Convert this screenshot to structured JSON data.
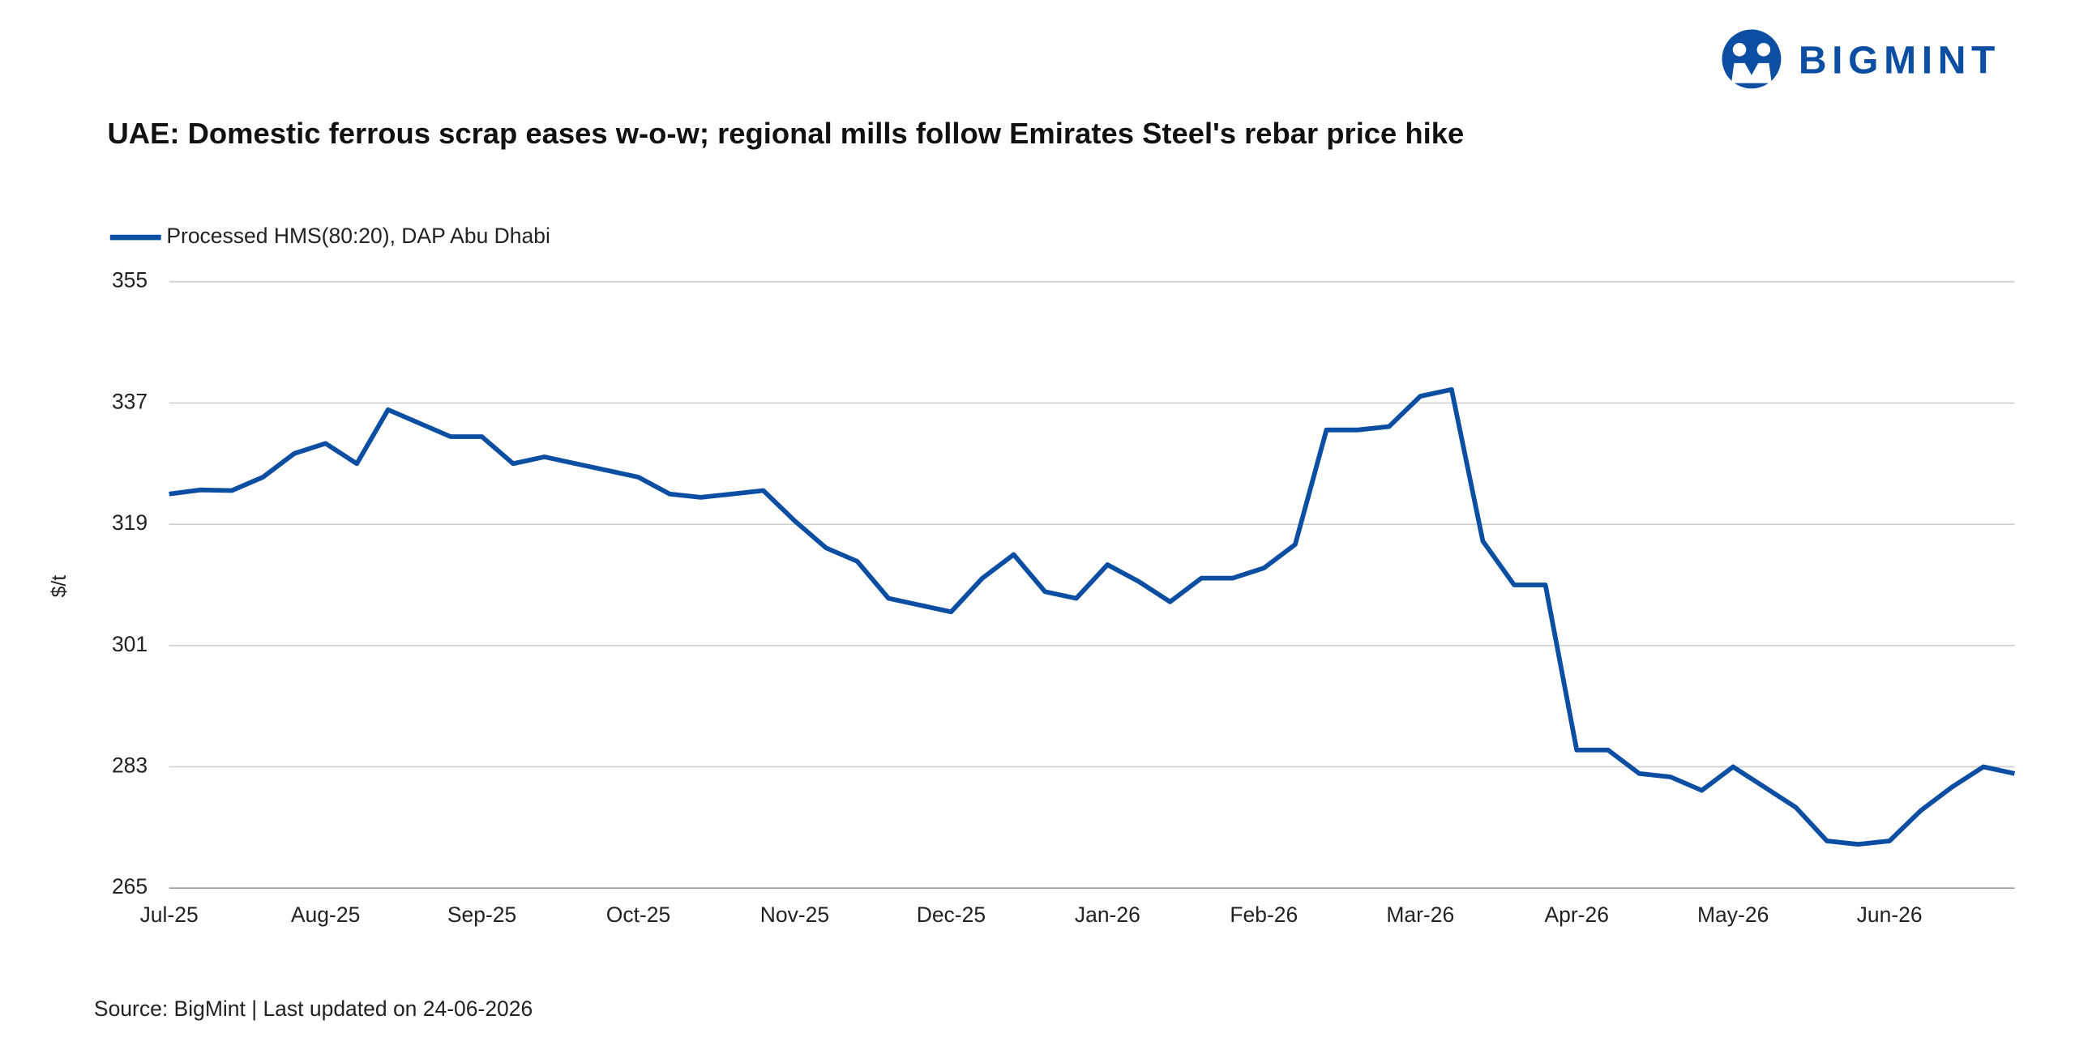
{
  "brand": "BIGMINT",
  "source": "Source: BigMint | Last updated on 24-06-2026",
  "chart_data": {
    "type": "line",
    "title": "UAE: Domestic ferrous scrap eases w-o-w; regional mills follow Emirates Steel's rebar price hike",
    "y_label": "$/t",
    "legend": "top-left",
    "grid": true,
    "categories": [
      "Jul-25",
      null,
      null,
      null,
      null,
      "Aug-25",
      null,
      null,
      null,
      null,
      "Sep-25",
      null,
      null,
      null,
      null,
      "Oct-25",
      null,
      null,
      null,
      null,
      "Nov-25",
      null,
      null,
      null,
      null,
      "Dec-25",
      null,
      null,
      null,
      null,
      "Jan-26",
      null,
      null,
      null,
      null,
      "Feb-26",
      null,
      null,
      null,
      null,
      "Mar-26",
      null,
      null,
      null,
      null,
      "Apr-26",
      null,
      null,
      null,
      null,
      "May-26",
      null,
      null,
      null,
      null,
      "Jun-26",
      null,
      null,
      null,
      null
    ],
    "series": [
      {
        "name": "Processed HMS(80:20), DAP Abu Dhabi",
        "color": "#0b4ea2",
        "values": [
          323.5,
          324.1,
          324,
          326,
          329.5,
          331,
          328,
          336,
          334,
          332,
          332,
          328,
          329,
          328,
          327,
          326,
          323.5,
          323,
          323.5,
          324,
          319.5,
          315.5,
          313.5,
          308,
          307,
          306,
          311,
          314.5,
          309,
          308,
          313,
          310.5,
          307.5,
          311,
          311,
          312.5,
          316,
          333,
          333,
          333.5,
          338,
          339,
          316.5,
          310,
          310,
          285.5,
          285.5,
          282,
          281.5,
          279.5,
          283,
          280,
          277,
          272,
          271.5,
          272,
          276.5,
          280,
          283,
          282
        ]
      }
    ],
    "ylim": [
      265,
      355
    ],
    "yticks": [
      265,
      283,
      301,
      319,
      337,
      355
    ]
  }
}
